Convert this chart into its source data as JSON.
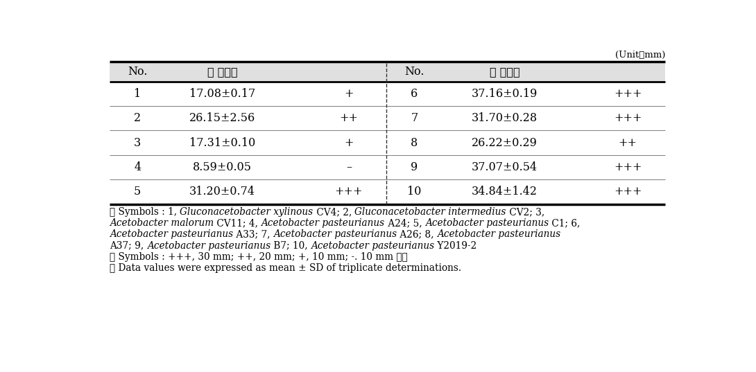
{
  "unit_label": "(Unit：mm)",
  "header_left_no": "No.",
  "header_left_val": "산 생성능",
  "header_right_no": "No.",
  "header_right_val": "산 생성능",
  "rows_left": [
    [
      "1",
      "17.08±0.17",
      "+"
    ],
    [
      "2",
      "26.15±2.56",
      "++"
    ],
    [
      "3",
      "17.31±0.10",
      "+"
    ],
    [
      "4",
      "8.59±0.05",
      "–"
    ],
    [
      "5",
      "31.20±0.74",
      "+++"
    ]
  ],
  "rows_right": [
    [
      "6",
      "37.16±0.19",
      "+++"
    ],
    [
      "7",
      "31.70±0.28",
      "+++"
    ],
    [
      "8",
      "26.22±0.29",
      "++"
    ],
    [
      "9",
      "37.07±0.54",
      "+++"
    ],
    [
      "10",
      "34.84±1.42",
      "+++"
    ]
  ],
  "footnote_lines": [
    [
      [
        "※ Symbols : 1, ",
        false
      ],
      [
        "Gluconacetobacter xylinous",
        true
      ],
      [
        " CV4; 2, ",
        false
      ],
      [
        "Gluconacetobacter intermedius",
        true
      ],
      [
        " CV2; 3,",
        false
      ]
    ],
    [
      [
        "Acetobacter malorum",
        true
      ],
      [
        " CV11; 4, ",
        false
      ],
      [
        "Acetobacter pasteurianus",
        true
      ],
      [
        " A24; 5, ",
        false
      ],
      [
        "Acetobacter pasteurianus",
        true
      ],
      [
        " C1; 6,",
        false
      ]
    ],
    [
      [
        "Acetobacter pasteurianus",
        true
      ],
      [
        " A33; 7, ",
        false
      ],
      [
        "Acetobacter pasteurianus",
        true
      ],
      [
        " A26; 8, ",
        false
      ],
      [
        "Acetobacter pasteurianus",
        true
      ]
    ],
    [
      [
        "A37; 9, ",
        false
      ],
      [
        "Acetobacter pasteurianus",
        true
      ],
      [
        " B7; 10, ",
        false
      ],
      [
        "Acetobacter pasteurianus",
        true
      ],
      [
        " Y2019-2",
        false
      ]
    ],
    [
      [
        "※ Symbols : +++, 30 mm; ++, 20 mm; +, 10 mm; -. 10 mm 미만",
        false
      ]
    ],
    [
      [
        "※ Data values were expressed as mean ± SD of triplicate determinations.",
        false
      ]
    ]
  ],
  "bg_color": "#ffffff",
  "header_bg": "#dedede",
  "text_color": "#000000",
  "table_fs": 11.5,
  "footnote_fs": 9.8,
  "unit_fs": 9.5
}
